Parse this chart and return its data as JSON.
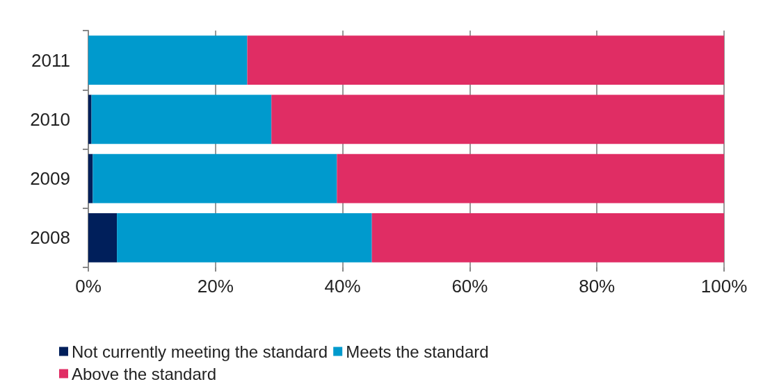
{
  "chart_data": {
    "type": "bar",
    "orientation": "horizontal",
    "stacked": true,
    "categories": [
      "2011",
      "2010",
      "2009",
      "2008"
    ],
    "series": [
      {
        "name": "Not currently meeting the standard",
        "color": "#001f5b",
        "values": [
          0,
          0.5,
          0.7,
          4.5
        ]
      },
      {
        "name": "Meets the standard",
        "color": "#009acd",
        "values": [
          25.0,
          28.3,
          38.4,
          40.1
        ]
      },
      {
        "name": "Above the standard",
        "color": "#e02d64",
        "values": [
          75.0,
          71.2,
          60.9,
          55.4
        ]
      }
    ],
    "xlim": [
      0,
      100
    ],
    "xticks": [
      {
        "value": 0,
        "label": "0%"
      },
      {
        "value": 20,
        "label": "20%"
      },
      {
        "value": 40,
        "label": "40%"
      },
      {
        "value": 60,
        "label": "60%"
      },
      {
        "value": 80,
        "label": "80%"
      },
      {
        "value": 100,
        "label": "100%"
      }
    ],
    "grid": "x",
    "legend": "bottom left"
  }
}
